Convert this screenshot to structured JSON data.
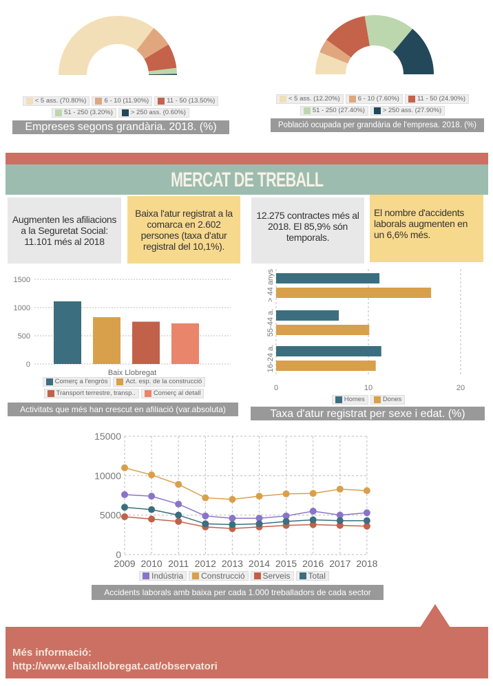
{
  "donut1": {
    "caption": "Empreses segons grandària. 2018. (%)",
    "slices": [
      {
        "label": "< 5 ass. (70.80%)",
        "value": 70.8,
        "color": "#f2dfb8"
      },
      {
        "label": "6 - 10 (11.90%)",
        "value": 11.9,
        "color": "#e0a77e"
      },
      {
        "label": "11 - 50 (13.50%)",
        "value": 13.5,
        "color": "#c4634a"
      },
      {
        "label": "51 - 250 (3.20%)",
        "value": 3.2,
        "color": "#bcd7ad"
      },
      {
        "label": "> 250 ass. (0.60%)",
        "value": 0.6,
        "color": "#23485a"
      }
    ]
  },
  "donut2": {
    "caption": "Població ocupada per grandària de l'empresa. 2018. (%)",
    "slices": [
      {
        "label": "< 5 ass. (12.20%)",
        "value": 12.2,
        "color": "#f2dfb8"
      },
      {
        "label": "6 - 10 (7.60%)",
        "value": 7.6,
        "color": "#e0a77e"
      },
      {
        "label": "11 - 50 (24.90%)",
        "value": 24.9,
        "color": "#c4634a"
      },
      {
        "label": "51 - 250 (27.40%)",
        "value": 27.4,
        "color": "#bcd7ad"
      },
      {
        "label": "> 250 ass. (27.90%)",
        "value": 27.9,
        "color": "#23485a"
      }
    ]
  },
  "section_title": "MERCAT DE TREBALL",
  "highlights": [
    "Augmenten les afiliacions a la Seguretat Social: 11.101 més al 2018",
    "Baixa l'atur registrat a la comarca en 2.602 persones (taxa d'atur registral del 10,1%).",
    "12.275 contractes més al 2018. El 85,9% són temporals.",
    "El nombre d'accidents laborals augmenten en un 6,6% més."
  ],
  "chart_data": [
    {
      "type": "bar",
      "title": "Activitats que més han crescut en afiliació (var.absoluta)",
      "categories": [
        "Baix Llobregat"
      ],
      "ylim": [
        0,
        1500
      ],
      "yticks": [
        "0",
        "500",
        "1000",
        "1500"
      ],
      "series": [
        {
          "name": "Comerç a l'engròs",
          "values": [
            1110
          ],
          "color": "#3b6e7e"
        },
        {
          "name": "Act. esp. de la construcció",
          "values": [
            830
          ],
          "color": "#d8a04a"
        },
        {
          "name": "Transport terrestre, transp..",
          "values": [
            750
          ],
          "color": "#c2614a"
        },
        {
          "name": "Comerç al detall",
          "values": [
            720
          ],
          "color": "#e8856a"
        }
      ]
    },
    {
      "type": "bar",
      "orientation": "horizontal",
      "title": "Taxa d'atur registrat per sexe i edat. (%)",
      "categories": [
        "> 44 anys",
        "55-44 a.",
        "16-24 a."
      ],
      "xlim": [
        0,
        22
      ],
      "xticks": [
        "0",
        "10",
        "20"
      ],
      "series": [
        {
          "name": "Homes",
          "values": [
            11.2,
            6.8,
            11.4
          ],
          "color": "#3b6e7e"
        },
        {
          "name": "Dones",
          "values": [
            16.8,
            10.1,
            10.8
          ],
          "color": "#d8a04a"
        }
      ]
    },
    {
      "type": "line",
      "title": "Accidents laborals amb baixa per cada 1.000 treballadors de cada sector",
      "x": [
        "2009",
        "2010",
        "2011",
        "2012",
        "2013",
        "2014",
        "2015",
        "2016",
        "2017",
        "2018"
      ],
      "ylim": [
        0,
        15000
      ],
      "yticks": [
        "0",
        "5000",
        "10000",
        "15000"
      ],
      "series": [
        {
          "name": "Indústria",
          "values": [
            7600,
            7400,
            6400,
            4900,
            4600,
            4600,
            4900,
            5500,
            5000,
            5300
          ],
          "color": "#8a74c8"
        },
        {
          "name": "Construcció",
          "values": [
            11000,
            10100,
            8900,
            7200,
            7000,
            7400,
            7700,
            7750,
            8300,
            8100
          ],
          "color": "#d8a04a"
        },
        {
          "name": "Serveis",
          "values": [
            4800,
            4500,
            4200,
            3500,
            3300,
            3500,
            3700,
            3800,
            3700,
            3600
          ],
          "color": "#c2614a"
        },
        {
          "name": "Total",
          "values": [
            6000,
            5700,
            5000,
            3900,
            3800,
            3900,
            4200,
            4400,
            4300,
            4300
          ],
          "color": "#3b6e7e"
        }
      ]
    }
  ],
  "footer": {
    "label": "Més informació:",
    "url": "http://www.elbaixllobregat.cat/observatori"
  }
}
